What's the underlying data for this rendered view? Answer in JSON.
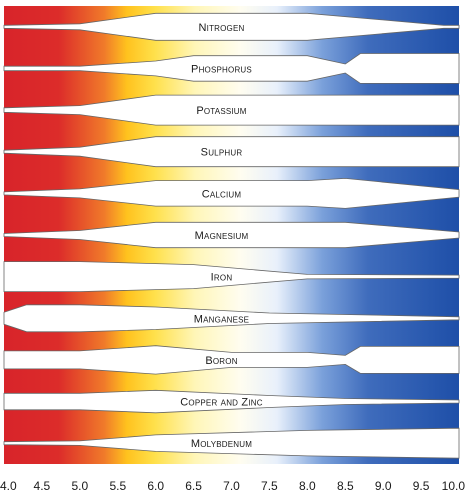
{
  "chart_data": {
    "type": "area",
    "title": "",
    "xlabel": "",
    "ylabel": "",
    "xlim": [
      4.0,
      10.0
    ],
    "x_ticks": [
      "4.0",
      "4.5",
      "5.0",
      "5.5",
      "6.0",
      "6.5",
      "7.0",
      "7.5",
      "8.0",
      "8.5",
      "9.0",
      "9.5",
      "10.0"
    ],
    "colors": {
      "acid": "#d8242a",
      "yellow": "#ffd21a",
      "neutral": "#ffffff",
      "alkaline": "#1e4fa8"
    },
    "series": [
      {
        "name": "Nitrogen",
        "x": [
          4.0,
          5.0,
          6.0,
          8.0,
          9.8,
          10.0
        ],
        "widths": [
          0.1,
          0.2,
          0.9,
          0.9,
          0.1,
          0.1
        ]
      },
      {
        "name": "Phosphorus",
        "x": [
          4.0,
          5.0,
          6.0,
          6.5,
          7.5,
          8.0,
          8.5,
          8.7,
          10.0
        ],
        "widths": [
          0.15,
          0.15,
          0.5,
          0.85,
          0.85,
          0.85,
          0.3,
          1.0,
          1.0
        ]
      },
      {
        "name": "Potassium",
        "x": [
          4.0,
          5.0,
          6.0,
          10.0
        ],
        "widths": [
          0.15,
          0.3,
          1.0,
          1.0
        ]
      },
      {
        "name": "Sulphur",
        "x": [
          4.0,
          5.0,
          6.0,
          10.0
        ],
        "widths": [
          0.1,
          0.3,
          1.0,
          1.0
        ]
      },
      {
        "name": "Calcium",
        "x": [
          4.0,
          5.0,
          6.0,
          8.0,
          8.5,
          10.0
        ],
        "widths": [
          0.1,
          0.3,
          0.85,
          0.85,
          1.0,
          0.25
        ]
      },
      {
        "name": "Magnesium",
        "x": [
          4.0,
          5.0,
          6.0,
          8.5,
          10.0
        ],
        "widths": [
          0.1,
          0.3,
          0.85,
          0.85,
          0.2
        ]
      },
      {
        "name": "Iron",
        "x": [
          4.0,
          5.0,
          6.5,
          8.0,
          10.0
        ],
        "widths": [
          1.0,
          1.0,
          0.8,
          0.15,
          0.1
        ]
      },
      {
        "name": "Manganese",
        "x": [
          4.0,
          4.3,
          5.0,
          6.0,
          7.5,
          10.0
        ],
        "widths": [
          0.4,
          0.9,
          0.9,
          0.75,
          0.35,
          0.1
        ]
      },
      {
        "name": "Boron",
        "x": [
          4.0,
          5.0,
          6.0,
          7.0,
          8.0,
          8.5,
          8.7,
          10.0
        ],
        "widths": [
          0.6,
          0.6,
          0.95,
          0.5,
          0.5,
          0.3,
          0.9,
          0.9
        ]
      },
      {
        "name": "Copper and Zinc",
        "x": [
          4.0,
          5.0,
          6.0,
          7.5,
          8.5,
          10.0
        ],
        "widths": [
          0.55,
          0.55,
          0.75,
          0.4,
          0.2,
          0.1
        ]
      },
      {
        "name": "Molybdenum",
        "x": [
          4.0,
          5.0,
          6.0,
          8.0,
          10.0
        ],
        "widths": [
          0.1,
          0.15,
          0.55,
          0.85,
          1.0
        ]
      }
    ],
    "band_labels": [
      "Nitrogen",
      "Phosphorus",
      "Potassium",
      "Sulphur",
      "Calcium",
      "Magnesium",
      "Iron",
      "Manganese",
      "Boron",
      "Copper and Zinc",
      "Molybdenum"
    ]
  }
}
